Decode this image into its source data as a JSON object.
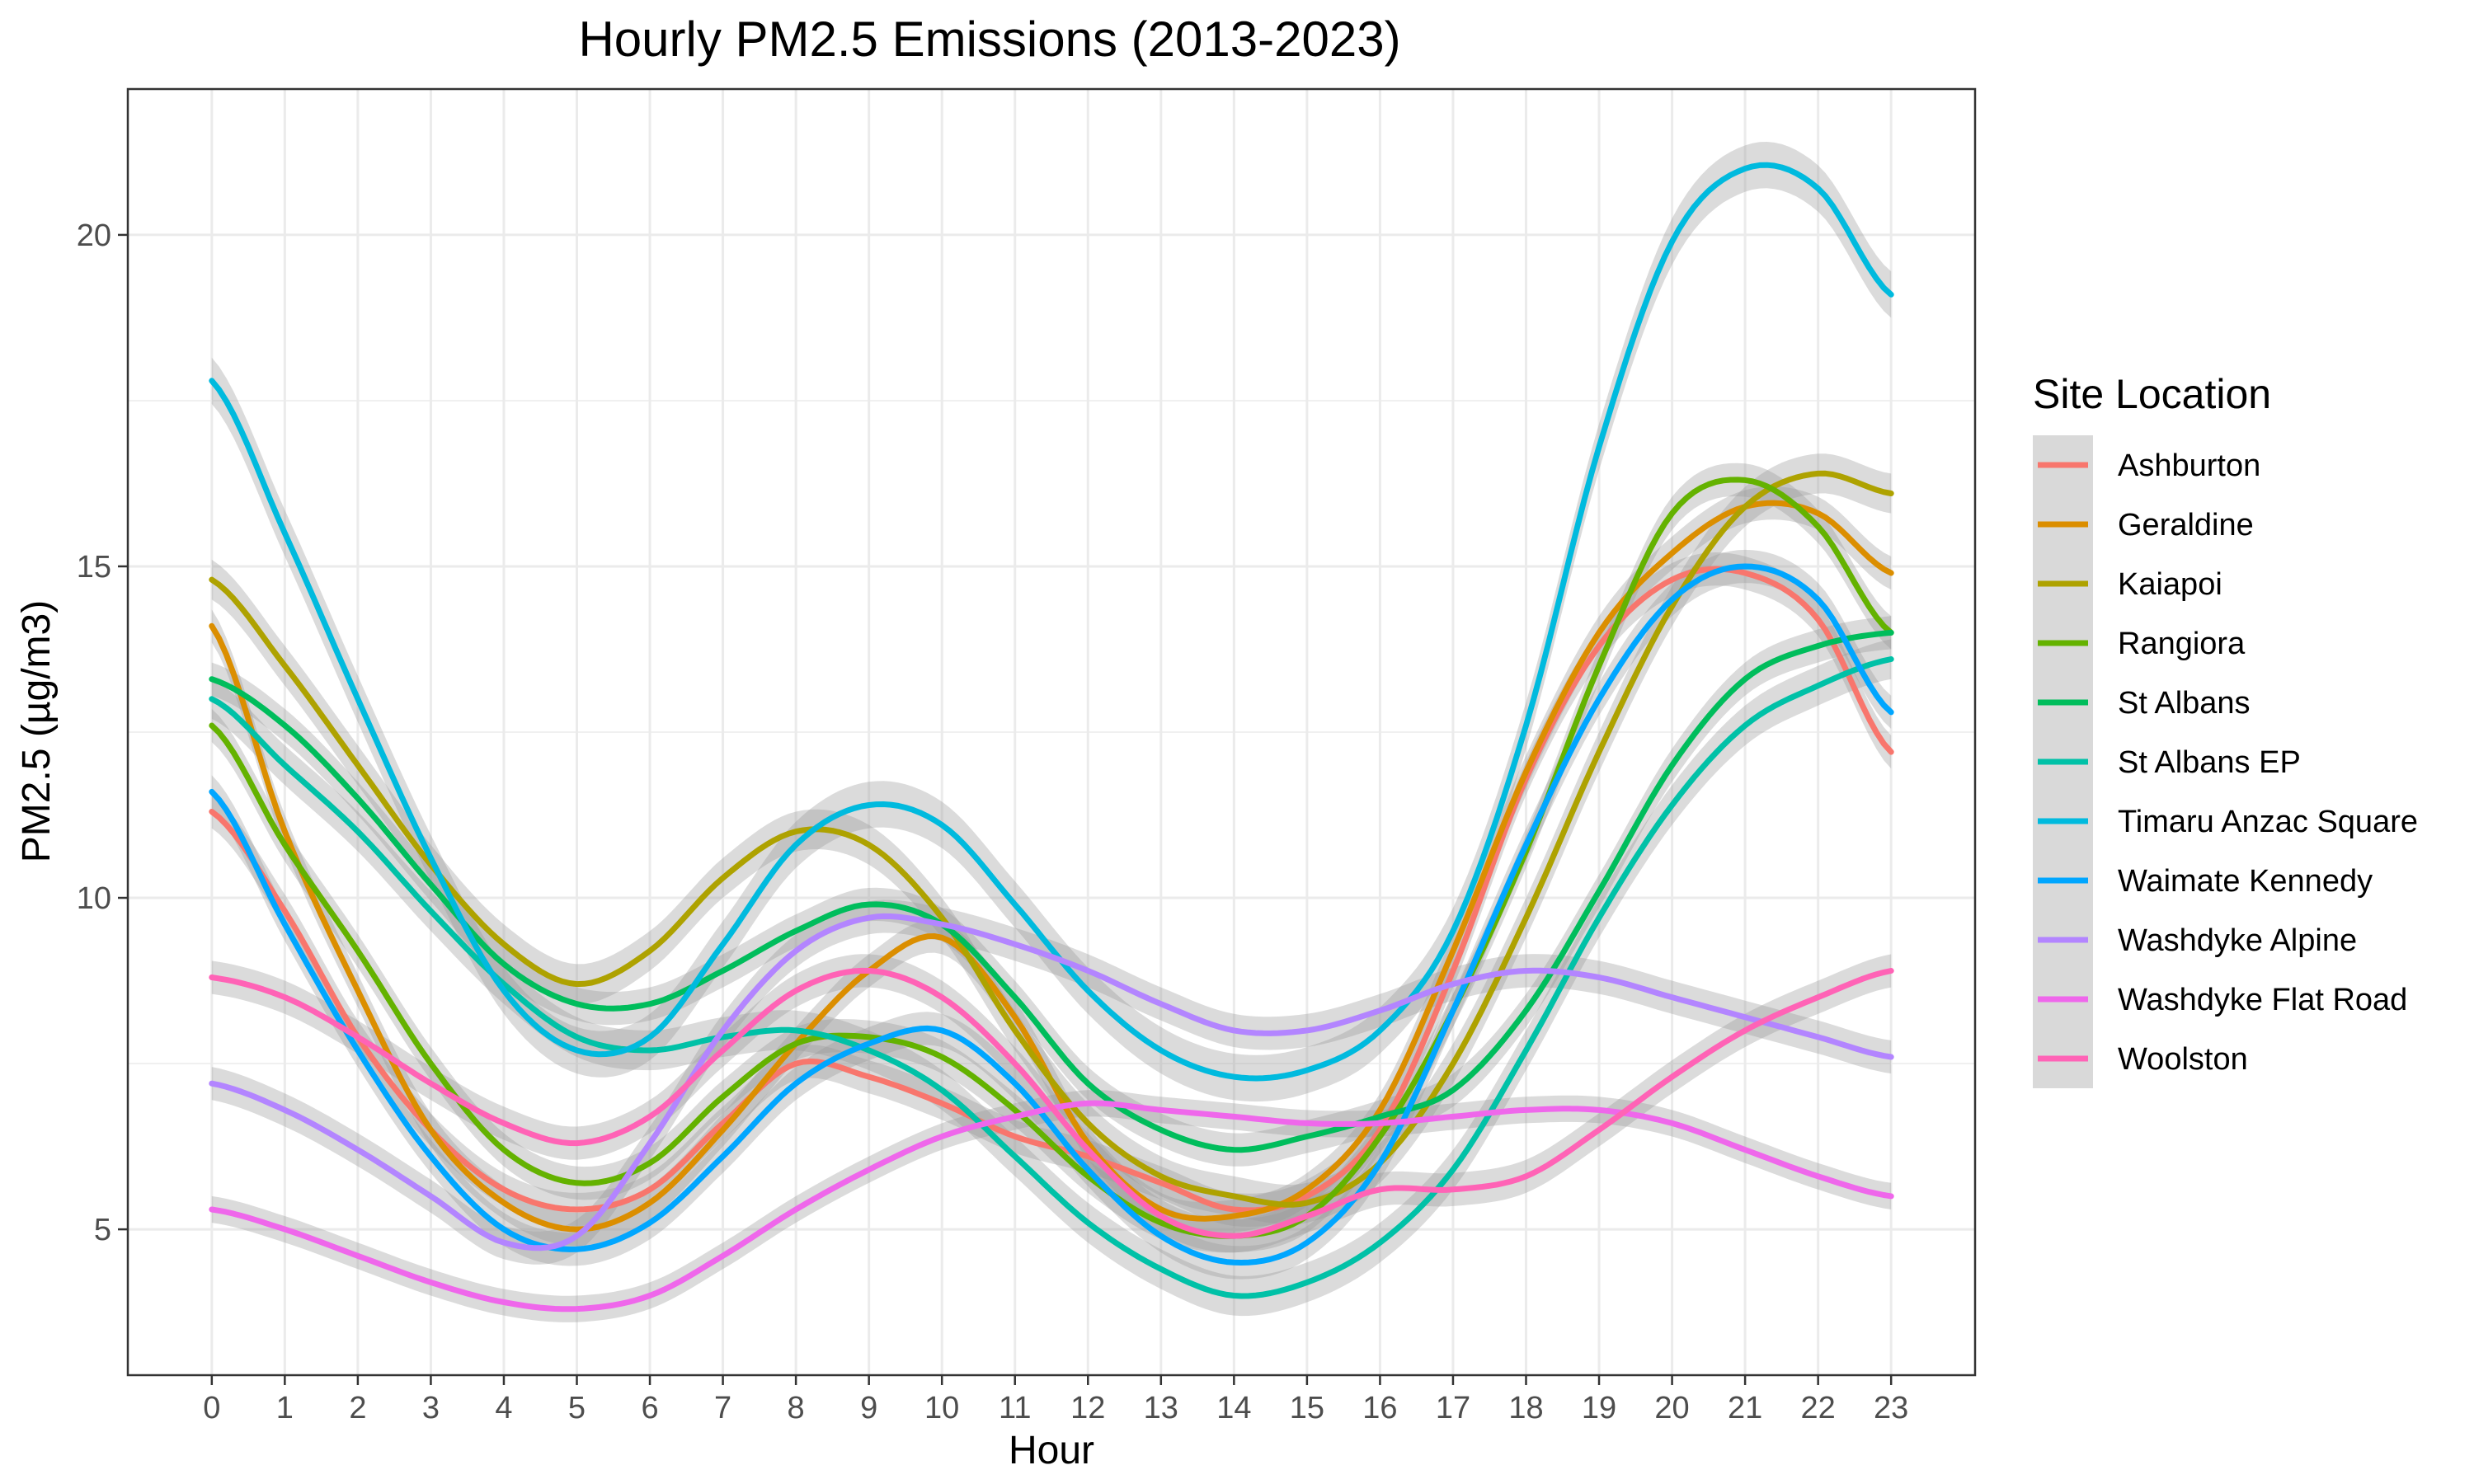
{
  "chart_data": {
    "type": "line",
    "title": "Hourly PM2.5 Emissions (2013-2023)",
    "xlabel": "Hour",
    "ylabel": "PM2.5 (µg/m3)",
    "xlim": [
      -1.15,
      24.15
    ],
    "ylim": [
      2.8,
      22.2
    ],
    "x": [
      0,
      1,
      2,
      3,
      4,
      5,
      6,
      7,
      8,
      9,
      10,
      11,
      12,
      13,
      14,
      15,
      16,
      17,
      18,
      19,
      20,
      21,
      22,
      23
    ],
    "x_ticks": [
      "0",
      "1",
      "2",
      "3",
      "4",
      "5",
      "6",
      "7",
      "8",
      "9",
      "10",
      "11",
      "12",
      "13",
      "14",
      "15",
      "16",
      "17",
      "18",
      "19",
      "20",
      "21",
      "22",
      "23"
    ],
    "y_ticks": [
      5,
      10,
      15,
      20
    ],
    "grid": true,
    "confidence_band": true,
    "legend": {
      "title": "Site Location",
      "position": "right"
    },
    "series": [
      {
        "name": "Ashburton",
        "color": "#F8766D",
        "ci": 0.25,
        "values": [
          11.3,
          9.8,
          7.9,
          6.5,
          5.6,
          5.3,
          5.6,
          6.6,
          7.5,
          7.3,
          6.9,
          6.4,
          6.1,
          5.7,
          5.3,
          5.5,
          6.5,
          8.9,
          11.8,
          13.8,
          14.8,
          14.9,
          14.2,
          12.2
        ]
      },
      {
        "name": "Geraldine",
        "color": "#DB8E00",
        "ci": 0.25,
        "values": [
          14.1,
          11.0,
          8.6,
          6.5,
          5.4,
          5.0,
          5.4,
          6.5,
          7.8,
          8.9,
          9.4,
          8.2,
          6.3,
          5.3,
          5.2,
          5.6,
          6.8,
          9.2,
          11.9,
          14.0,
          15.2,
          15.9,
          15.8,
          14.9
        ]
      },
      {
        "name": "Kaiapoi",
        "color": "#AEA200",
        "ci": 0.3,
        "values": [
          14.8,
          13.5,
          12.0,
          10.5,
          9.3,
          8.7,
          9.2,
          10.3,
          11.0,
          10.8,
          9.7,
          8.0,
          6.6,
          5.8,
          5.5,
          5.4,
          6.0,
          7.5,
          9.7,
          12.2,
          14.4,
          15.9,
          16.4,
          16.1
        ]
      },
      {
        "name": "Rangiora",
        "color": "#64B200",
        "ci": 0.25,
        "values": [
          12.6,
          10.8,
          9.2,
          7.5,
          6.2,
          5.7,
          6.0,
          7.0,
          7.8,
          7.9,
          7.6,
          6.8,
          5.8,
          5.1,
          4.9,
          5.2,
          6.4,
          8.3,
          10.7,
          13.5,
          15.8,
          16.3,
          15.6,
          14.0
        ]
      },
      {
        "name": "St Albans",
        "color": "#00BD5C",
        "ci": 0.25,
        "values": [
          13.3,
          12.6,
          11.5,
          10.2,
          9.0,
          8.4,
          8.4,
          8.9,
          9.5,
          9.9,
          9.6,
          8.5,
          7.2,
          6.5,
          6.2,
          6.4,
          6.7,
          7.1,
          8.3,
          10.1,
          12.0,
          13.3,
          13.8,
          14.0
        ]
      },
      {
        "name": "St Albans EP",
        "color": "#00C1A7",
        "ci": 0.3,
        "values": [
          13.0,
          12.0,
          11.0,
          9.8,
          8.7,
          7.9,
          7.7,
          7.9,
          8.0,
          7.7,
          7.1,
          6.1,
          5.1,
          4.4,
          4.0,
          4.2,
          4.8,
          5.9,
          7.7,
          9.7,
          11.4,
          12.6,
          13.2,
          13.6
        ]
      },
      {
        "name": "Timaru Anzac Square",
        "color": "#00BADE",
        "ci": 0.35,
        "values": [
          17.8,
          15.5,
          13.0,
          10.6,
          8.6,
          7.7,
          7.9,
          9.3,
          10.8,
          11.4,
          11.1,
          9.9,
          8.6,
          7.7,
          7.3,
          7.4,
          8.0,
          9.5,
          12.6,
          16.8,
          19.9,
          21.0,
          20.7,
          19.1
        ]
      },
      {
        "name": "Waimate Kennedy",
        "color": "#00A6FF",
        "ci": 0.25,
        "values": [
          11.6,
          9.6,
          7.7,
          6.1,
          5.0,
          4.7,
          5.1,
          6.1,
          7.2,
          7.8,
          8.0,
          7.2,
          5.9,
          4.9,
          4.5,
          4.8,
          6.0,
          8.3,
          10.8,
          13.0,
          14.5,
          15.0,
          14.5,
          12.8
        ]
      },
      {
        "name": "Washdyke Alpine",
        "color": "#B385FF",
        "ci": 0.25,
        "values": [
          7.2,
          6.8,
          6.2,
          5.5,
          4.8,
          4.9,
          6.3,
          8.0,
          9.2,
          9.7,
          9.6,
          9.3,
          8.9,
          8.4,
          8.0,
          8.0,
          8.3,
          8.7,
          8.9,
          8.8,
          8.5,
          8.2,
          7.9,
          7.6
        ]
      },
      {
        "name": "Washdyke Flat Road",
        "color": "#EF67EB",
        "ci": 0.2,
        "values": [
          5.3,
          5.0,
          4.6,
          4.2,
          3.9,
          3.8,
          4.0,
          4.6,
          5.3,
          5.9,
          6.4,
          6.7,
          6.9,
          6.8,
          6.7,
          6.6,
          6.6,
          6.7,
          6.8,
          6.8,
          6.6,
          6.2,
          5.8,
          5.5
        ]
      },
      {
        "name": "Woolston",
        "color": "#FF63B6",
        "ci": 0.25,
        "values": [
          8.8,
          8.5,
          7.9,
          7.2,
          6.6,
          6.3,
          6.7,
          7.7,
          8.6,
          8.9,
          8.5,
          7.5,
          6.2,
          5.2,
          4.9,
          5.2,
          5.6,
          5.6,
          5.8,
          6.5,
          7.3,
          8.0,
          8.5,
          8.9
        ]
      }
    ]
  }
}
